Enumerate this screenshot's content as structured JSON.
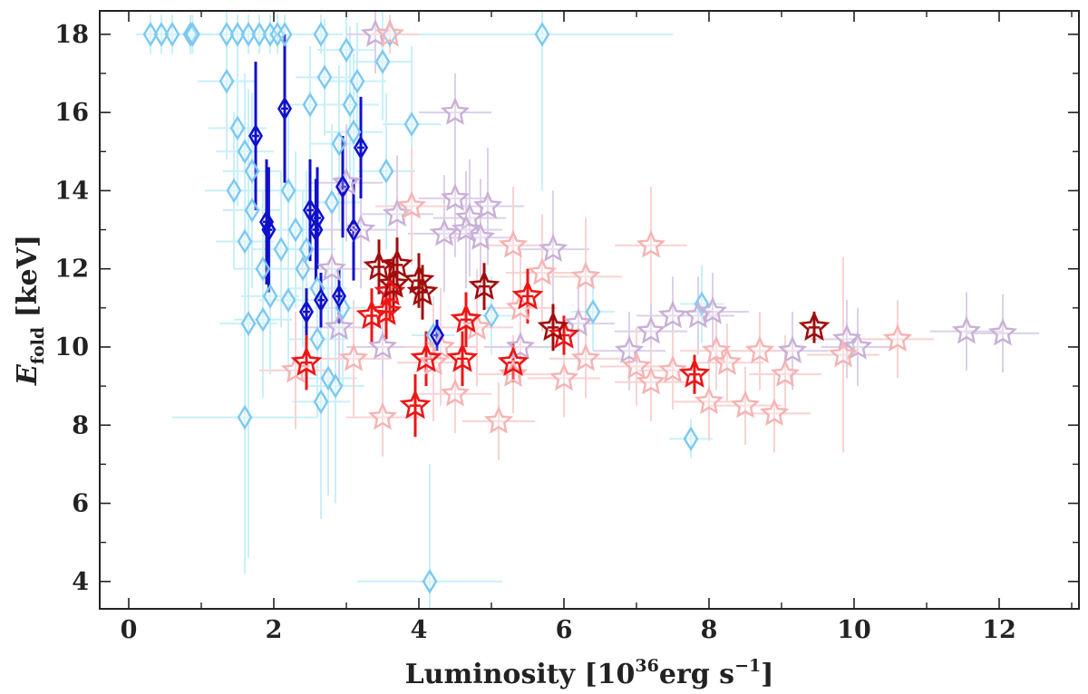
{
  "chart_data": {
    "type": "scatter",
    "xlabel": "Luminosity [10^36 erg s^-1]",
    "xlabel_main": "Luminosity [10",
    "xlabel_exp": "36",
    "xlabel_tail": "erg s",
    "xlabel_tail_exp": "−1",
    "xlabel_close": "]",
    "ylabel": "E_fold [keV]",
    "ylabel_main": "E",
    "ylabel_sub": "fold",
    "ylabel_unit": " [keV]",
    "xlim": [
      -0.4,
      13.1
    ],
    "ylim": [
      3.3,
      18.6
    ],
    "xticks": [
      0,
      2,
      4,
      6,
      8,
      10,
      12
    ],
    "yticks": [
      4,
      6,
      8,
      10,
      12,
      14,
      16,
      18
    ],
    "xticklabels": [
      "0",
      "2",
      "4",
      "6",
      "8",
      "10",
      "12"
    ],
    "yticklabels": [
      "4",
      "6",
      "8",
      "10",
      "12",
      "14",
      "16",
      "18"
    ],
    "grid": false,
    "legend": "none",
    "series": [
      {
        "marker": "diamond",
        "color": "#7cc8f2",
        "errcolor": "#c8f0fa",
        "points": [
          {
            "x": 0.3,
            "y": 18.0,
            "xe": 0.2,
            "ye": 0.5
          },
          {
            "x": 0.45,
            "y": 18.0,
            "xe": 0.2,
            "ye": 0.5
          },
          {
            "x": 0.6,
            "y": 18.0,
            "xe": 0.25,
            "ye": 0.5
          },
          {
            "x": 0.85,
            "y": 18.0,
            "xe": 0.3,
            "ye": 0.5
          },
          {
            "x": 0.88,
            "y": 18.0,
            "xe": 0.3,
            "ye": 0.5
          },
          {
            "x": 1.35,
            "y": 18.0,
            "xe": 0.3,
            "ye": 0.5
          },
          {
            "x": 1.5,
            "y": 18.0,
            "xe": 0.3,
            "ye": 0.5
          },
          {
            "x": 1.65,
            "y": 18.0,
            "xe": 0.3,
            "ye": 0.5
          },
          {
            "x": 1.8,
            "y": 18.0,
            "xe": 0.3,
            "ye": 0.5
          },
          {
            "x": 1.95,
            "y": 18.0,
            "xe": 0.3,
            "ye": 0.5
          },
          {
            "x": 2.05,
            "y": 18.0,
            "xe": 0.3,
            "ye": 0.5
          },
          {
            "x": 2.15,
            "y": 18.0,
            "xe": 0.3,
            "ye": 0.5
          },
          {
            "x": 2.65,
            "y": 18.0,
            "xe": 0.3,
            "ye": 0.5
          },
          {
            "x": 3.6,
            "y": 18.0,
            "xe": 0.3,
            "ye": 0.5
          },
          {
            "x": 5.7,
            "y": 18.0,
            "xe": 1.8,
            "ye": 4.0
          },
          {
            "x": 1.35,
            "y": 16.8,
            "xe": 0.4,
            "ye": 2.0
          },
          {
            "x": 1.5,
            "y": 15.6,
            "xe": 0.4,
            "ye": 2.0
          },
          {
            "x": 1.6,
            "y": 15.0,
            "xe": 0.4,
            "ye": 2.0
          },
          {
            "x": 1.45,
            "y": 14.0,
            "xe": 0.4,
            "ye": 2.0
          },
          {
            "x": 1.6,
            "y": 12.7,
            "xe": 0.4,
            "ye": 2.5
          },
          {
            "x": 1.7,
            "y": 13.5,
            "xe": 0.4,
            "ye": 2.0
          },
          {
            "x": 1.7,
            "y": 14.5,
            "xe": 0.4,
            "ye": 2.0
          },
          {
            "x": 1.85,
            "y": 12.0,
            "xe": 0.4,
            "ye": 2.0
          },
          {
            "x": 1.85,
            "y": 10.7,
            "xe": 0.4,
            "ye": 2.0
          },
          {
            "x": 1.95,
            "y": 11.3,
            "xe": 0.4,
            "ye": 2.0
          },
          {
            "x": 1.65,
            "y": 10.6,
            "xe": 0.4,
            "ye": 6.0
          },
          {
            "x": 2.1,
            "y": 12.5,
            "xe": 0.4,
            "ye": 2.0
          },
          {
            "x": 2.2,
            "y": 14.0,
            "xe": 0.4,
            "ye": 2.0
          },
          {
            "x": 2.3,
            "y": 13.0,
            "xe": 0.4,
            "ye": 2.0
          },
          {
            "x": 2.45,
            "y": 12.5,
            "xe": 0.4,
            "ye": 2.0
          },
          {
            "x": 2.5,
            "y": 16.2,
            "xe": 0.4,
            "ye": 1.5
          },
          {
            "x": 2.6,
            "y": 11.5,
            "xe": 0.4,
            "ye": 2.0
          },
          {
            "x": 2.6,
            "y": 10.2,
            "xe": 0.4,
            "ye": 2.0
          },
          {
            "x": 2.7,
            "y": 16.9,
            "xe": 0.4,
            "ye": 1.5
          },
          {
            "x": 2.8,
            "y": 13.7,
            "xe": 0.4,
            "ye": 2.0
          },
          {
            "x": 2.9,
            "y": 15.2,
            "xe": 0.4,
            "ye": 2.0
          },
          {
            "x": 2.95,
            "y": 11.0,
            "xe": 0.4,
            "ye": 2.0
          },
          {
            "x": 3.0,
            "y": 17.6,
            "xe": 0.4,
            "ye": 1.5
          },
          {
            "x": 3.05,
            "y": 16.2,
            "xe": 0.4,
            "ye": 2.0
          },
          {
            "x": 3.1,
            "y": 15.5,
            "xe": 0.4,
            "ye": 2.0
          },
          {
            "x": 3.15,
            "y": 16.8,
            "xe": 0.4,
            "ye": 1.5
          },
          {
            "x": 3.5,
            "y": 17.3,
            "xe": 0.4,
            "ye": 1.5
          },
          {
            "x": 3.55,
            "y": 14.5,
            "xe": 0.4,
            "ye": 2.0
          },
          {
            "x": 3.9,
            "y": 15.7,
            "xe": 0.4,
            "ye": 2.0
          },
          {
            "x": 2.4,
            "y": 12.0,
            "xe": 0.4,
            "ye": 2.0
          },
          {
            "x": 2.2,
            "y": 11.2,
            "xe": 0.4,
            "ye": 2.0
          },
          {
            "x": 2.65,
            "y": 8.6,
            "xe": 0.4,
            "ye": 3.0
          },
          {
            "x": 2.75,
            "y": 9.2,
            "xe": 0.4,
            "ye": 3.0
          },
          {
            "x": 2.85,
            "y": 9.0,
            "xe": 0.4,
            "ye": 3.0
          },
          {
            "x": 1.6,
            "y": 8.2,
            "xe": 1.0,
            "ye": 4.0
          },
          {
            "x": 4.15,
            "y": 4.0,
            "xe": 1.0,
            "ye": 3.0
          },
          {
            "x": 7.75,
            "y": 7.65,
            "xe": 0.3,
            "ye": 0.5
          },
          {
            "x": 7.9,
            "y": 11.1,
            "xe": 0.3,
            "ye": 1.0
          },
          {
            "x": 6.4,
            "y": 10.9,
            "xe": 0.3,
            "ye": 1.0
          },
          {
            "x": 5.0,
            "y": 10.8,
            "xe": 0.3,
            "ye": 1.0
          },
          {
            "x": 4.2,
            "y": 10.3,
            "xe": 0.3,
            "ye": 1.0
          }
        ]
      },
      {
        "marker": "star",
        "color": "#c9b0d6",
        "errcolor": "#ddd0ea",
        "points": [
          {
            "x": 3.4,
            "y": 18.0,
            "xe": 0.4,
            "ye": 1.0
          },
          {
            "x": 4.5,
            "y": 16.0,
            "xe": 0.5,
            "ye": 1.0
          },
          {
            "x": 4.5,
            "y": 13.8,
            "xe": 0.5,
            "ye": 1.5
          },
          {
            "x": 4.7,
            "y": 13.3,
            "xe": 0.5,
            "ye": 1.5
          },
          {
            "x": 4.85,
            "y": 12.8,
            "xe": 0.5,
            "ye": 1.5
          },
          {
            "x": 4.95,
            "y": 13.6,
            "xe": 0.5,
            "ye": 1.5
          },
          {
            "x": 4.35,
            "y": 12.9,
            "xe": 0.5,
            "ye": 1.5
          },
          {
            "x": 4.65,
            "y": 13.0,
            "xe": 0.5,
            "ye": 1.5
          },
          {
            "x": 5.85,
            "y": 12.5,
            "xe": 0.5,
            "ye": 1.5
          },
          {
            "x": 3.0,
            "y": 14.2,
            "xe": 0.5,
            "ye": 1.5
          },
          {
            "x": 3.2,
            "y": 13.0,
            "xe": 0.5,
            "ye": 1.5
          },
          {
            "x": 3.7,
            "y": 13.4,
            "xe": 0.5,
            "ye": 1.5
          },
          {
            "x": 2.8,
            "y": 12.0,
            "xe": 0.5,
            "ye": 1.5
          },
          {
            "x": 2.9,
            "y": 10.5,
            "xe": 0.5,
            "ye": 1.5
          },
          {
            "x": 3.5,
            "y": 10.0,
            "xe": 0.5,
            "ye": 1.5
          },
          {
            "x": 6.9,
            "y": 9.9,
            "xe": 0.5,
            "ye": 1.0
          },
          {
            "x": 7.2,
            "y": 10.4,
            "xe": 0.5,
            "ye": 1.0
          },
          {
            "x": 7.5,
            "y": 10.8,
            "xe": 0.5,
            "ye": 1.0
          },
          {
            "x": 7.85,
            "y": 10.8,
            "xe": 0.5,
            "ye": 1.0
          },
          {
            "x": 8.05,
            "y": 10.9,
            "xe": 0.5,
            "ye": 1.0
          },
          {
            "x": 9.15,
            "y": 9.9,
            "xe": 0.5,
            "ye": 1.0
          },
          {
            "x": 9.9,
            "y": 10.2,
            "xe": 0.5,
            "ye": 1.0
          },
          {
            "x": 10.05,
            "y": 10.0,
            "xe": 0.5,
            "ye": 1.0
          },
          {
            "x": 11.55,
            "y": 10.4,
            "xe": 0.5,
            "ye": 1.0
          },
          {
            "x": 12.05,
            "y": 10.35,
            "xe": 0.5,
            "ye": 1.0
          },
          {
            "x": 6.2,
            "y": 10.6,
            "xe": 0.5,
            "ye": 1.0
          },
          {
            "x": 5.4,
            "y": 10.0,
            "xe": 0.5,
            "ye": 1.0
          }
        ]
      },
      {
        "marker": "star",
        "color": "#f6b3b3",
        "errcolor": "#f9d3d3",
        "points": [
          {
            "x": 3.6,
            "y": 18.0,
            "xe": 0.4,
            "ye": 0.5
          },
          {
            "x": 3.5,
            "y": 8.2,
            "xe": 0.5,
            "ye": 1.0
          },
          {
            "x": 4.5,
            "y": 8.8,
            "xe": 0.5,
            "ye": 1.0
          },
          {
            "x": 5.1,
            "y": 8.1,
            "xe": 0.5,
            "ye": 1.0
          },
          {
            "x": 5.3,
            "y": 9.3,
            "xe": 0.5,
            "ye": 1.0
          },
          {
            "x": 4.3,
            "y": 10.0,
            "xe": 0.5,
            "ye": 1.5
          },
          {
            "x": 4.8,
            "y": 10.5,
            "xe": 0.5,
            "ye": 1.5
          },
          {
            "x": 5.4,
            "y": 11.0,
            "xe": 0.5,
            "ye": 1.5
          },
          {
            "x": 5.7,
            "y": 11.9,
            "xe": 0.5,
            "ye": 1.5
          },
          {
            "x": 6.3,
            "y": 11.8,
            "xe": 0.5,
            "ye": 1.5
          },
          {
            "x": 6.0,
            "y": 9.2,
            "xe": 0.5,
            "ye": 1.0
          },
          {
            "x": 6.3,
            "y": 9.7,
            "xe": 0.5,
            "ye": 1.0
          },
          {
            "x": 7.2,
            "y": 12.6,
            "xe": 0.5,
            "ye": 1.5
          },
          {
            "x": 7.0,
            "y": 9.5,
            "xe": 0.5,
            "ye": 1.0
          },
          {
            "x": 7.2,
            "y": 9.1,
            "xe": 0.5,
            "ye": 1.0
          },
          {
            "x": 7.5,
            "y": 9.4,
            "xe": 0.5,
            "ye": 1.0
          },
          {
            "x": 8.0,
            "y": 8.6,
            "xe": 0.5,
            "ye": 1.0
          },
          {
            "x": 8.1,
            "y": 9.9,
            "xe": 0.5,
            "ye": 1.0
          },
          {
            "x": 8.25,
            "y": 9.6,
            "xe": 0.5,
            "ye": 1.0
          },
          {
            "x": 8.5,
            "y": 8.5,
            "xe": 0.5,
            "ye": 1.0
          },
          {
            "x": 8.7,
            "y": 9.9,
            "xe": 0.5,
            "ye": 1.0
          },
          {
            "x": 8.9,
            "y": 8.3,
            "xe": 0.5,
            "ye": 1.0
          },
          {
            "x": 9.05,
            "y": 9.3,
            "xe": 0.5,
            "ye": 1.0
          },
          {
            "x": 9.85,
            "y": 9.8,
            "xe": 0.5,
            "ye": 2.5
          },
          {
            "x": 10.6,
            "y": 10.2,
            "xe": 0.5,
            "ye": 1.0
          },
          {
            "x": 3.1,
            "y": 9.7,
            "xe": 0.5,
            "ye": 1.5
          },
          {
            "x": 2.3,
            "y": 9.4,
            "xe": 0.5,
            "ye": 1.5
          },
          {
            "x": 3.9,
            "y": 13.6,
            "xe": 0.5,
            "ye": 1.5
          },
          {
            "x": 5.3,
            "y": 12.6,
            "xe": 0.5,
            "ye": 1.5
          },
          {
            "x": 4.2,
            "y": 9.6,
            "xe": 0.5,
            "ye": 1.5
          }
        ]
      },
      {
        "marker": "diamond-strong",
        "color": "#1010cc",
        "errcolor": "#1010cc",
        "points": [
          {
            "x": 1.75,
            "y": 15.4,
            "xe": 0.05,
            "ye": 1.9
          },
          {
            "x": 2.15,
            "y": 16.1,
            "xe": 0.05,
            "ye": 1.9
          },
          {
            "x": 1.9,
            "y": 13.2,
            "xe": 0.05,
            "ye": 1.6
          },
          {
            "x": 1.93,
            "y": 13.0,
            "xe": 0.05,
            "ye": 1.6
          },
          {
            "x": 2.5,
            "y": 13.5,
            "xe": 0.05,
            "ye": 1.3
          },
          {
            "x": 2.6,
            "y": 13.3,
            "xe": 0.05,
            "ye": 1.3
          },
          {
            "x": 2.58,
            "y": 13.0,
            "xe": 0.05,
            "ye": 1.3
          },
          {
            "x": 2.95,
            "y": 14.1,
            "xe": 0.05,
            "ye": 1.3
          },
          {
            "x": 3.1,
            "y": 13.0,
            "xe": 0.05,
            "ye": 1.3
          },
          {
            "x": 3.2,
            "y": 15.1,
            "xe": 0.05,
            "ye": 1.3
          },
          {
            "x": 2.45,
            "y": 10.9,
            "xe": 0.05,
            "ye": 0.6
          },
          {
            "x": 2.65,
            "y": 11.2,
            "xe": 0.05,
            "ye": 0.7
          },
          {
            "x": 2.9,
            "y": 11.3,
            "xe": 0.05,
            "ye": 0.7
          },
          {
            "x": 4.25,
            "y": 10.3,
            "xe": 0.05,
            "ye": 0.4
          }
        ]
      },
      {
        "marker": "star-strong",
        "color": "#ee1515",
        "errcolor": "#ee1515",
        "points": [
          {
            "x": 2.45,
            "y": 9.6,
            "xe": 0.08,
            "ye": 0.7
          },
          {
            "x": 3.35,
            "y": 10.8,
            "xe": 0.08,
            "ye": 0.7
          },
          {
            "x": 3.55,
            "y": 10.9,
            "xe": 0.08,
            "ye": 0.7
          },
          {
            "x": 3.6,
            "y": 11.4,
            "xe": 0.08,
            "ye": 0.7
          },
          {
            "x": 3.95,
            "y": 8.5,
            "xe": 0.08,
            "ye": 0.8
          },
          {
            "x": 4.1,
            "y": 9.7,
            "xe": 0.08,
            "ye": 0.7
          },
          {
            "x": 4.6,
            "y": 9.7,
            "xe": 0.08,
            "ye": 0.7
          },
          {
            "x": 4.65,
            "y": 10.7,
            "xe": 0.08,
            "ye": 0.7
          },
          {
            "x": 5.3,
            "y": 9.6,
            "xe": 0.08,
            "ye": 0.5
          },
          {
            "x": 5.5,
            "y": 11.3,
            "xe": 0.08,
            "ye": 0.7
          },
          {
            "x": 6.0,
            "y": 10.3,
            "xe": 0.08,
            "ye": 0.5
          },
          {
            "x": 7.8,
            "y": 9.3,
            "xe": 0.08,
            "ye": 0.5
          }
        ]
      },
      {
        "marker": "star-strong",
        "color": "#a00d0d",
        "errcolor": "#a00d0d",
        "points": [
          {
            "x": 3.45,
            "y": 12.05,
            "xe": 0.08,
            "ye": 0.7
          },
          {
            "x": 3.7,
            "y": 12.1,
            "xe": 0.08,
            "ye": 0.7
          },
          {
            "x": 3.65,
            "y": 11.6,
            "xe": 0.08,
            "ye": 0.7
          },
          {
            "x": 4.0,
            "y": 11.7,
            "xe": 0.08,
            "ye": 0.7
          },
          {
            "x": 4.05,
            "y": 11.4,
            "xe": 0.08,
            "ye": 0.7
          },
          {
            "x": 4.9,
            "y": 11.55,
            "xe": 0.08,
            "ye": 0.6
          },
          {
            "x": 5.85,
            "y": 10.5,
            "xe": 0.08,
            "ye": 0.6
          },
          {
            "x": 9.45,
            "y": 10.5,
            "xe": 0.08,
            "ye": 0.4
          }
        ]
      }
    ]
  }
}
